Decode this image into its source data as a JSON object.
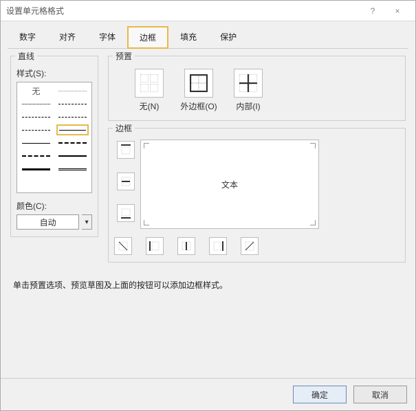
{
  "window": {
    "title": "设置单元格格式"
  },
  "winbtns": {
    "help": "?",
    "close": "×"
  },
  "tabs": [
    {
      "label": "数字"
    },
    {
      "label": "对齐"
    },
    {
      "label": "字体"
    },
    {
      "label": "边框",
      "active": true
    },
    {
      "label": "填充"
    },
    {
      "label": "保护"
    }
  ],
  "groups": {
    "line": "直线",
    "preset": "预置",
    "border": "边框"
  },
  "line": {
    "style_label": "样式(S):",
    "none_label": "无",
    "color_label": "颜色(C):",
    "color_value": "自动",
    "dropdown_glyph": "▾",
    "selected_index": 7,
    "styles": [
      {
        "kind": "none"
      },
      {
        "kind": "hair"
      },
      {
        "kind": "dot"
      },
      {
        "kind": "dash"
      },
      {
        "kind": "dash"
      },
      {
        "kind": "dashdot"
      },
      {
        "kind": "dashdot"
      },
      {
        "kind": "thin"
      },
      {
        "kind": "thin"
      },
      {
        "kind": "dash-med"
      },
      {
        "kind": "dash-med"
      },
      {
        "kind": "med"
      },
      {
        "kind": "thick"
      },
      {
        "kind": "dbl"
      }
    ]
  },
  "presets": [
    {
      "key": "none",
      "label": "无(N)"
    },
    {
      "key": "outline",
      "label": "外边框(O)"
    },
    {
      "key": "inside",
      "label": "内部(I)"
    }
  ],
  "border": {
    "preview_text": "文本",
    "side_icons": {
      "top": "top",
      "mid_h": "mid-h",
      "bottom": "bottom",
      "diag1": "diag-down",
      "left": "left",
      "mid_v": "mid-v",
      "right": "right",
      "diag2": "diag-up"
    }
  },
  "hint": "单击预置选项、预览草图及上面的按钮可以添加边框样式。",
  "buttons": {
    "ok": "确定",
    "cancel": "取消"
  },
  "colors": {
    "accent": "#e8b84a",
    "window_bg": "#f0f0f0",
    "border": "#bbbbbb",
    "text": "#333333"
  }
}
